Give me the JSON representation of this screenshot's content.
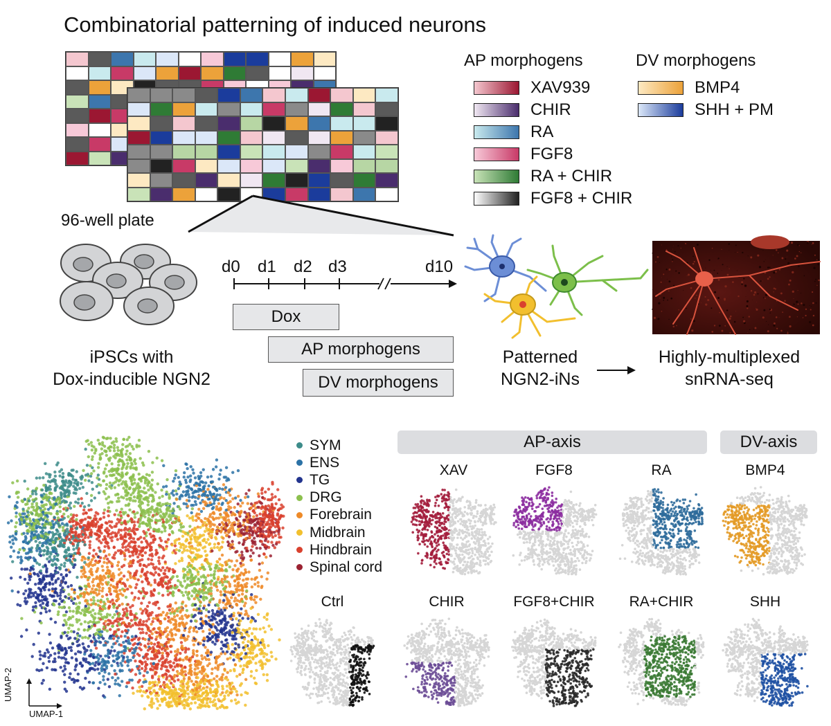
{
  "title": "Combinatorial patterning of induced neurons",
  "plate_label": "96-well plate",
  "legend": {
    "ap_title": "AP morphogens",
    "dv_title": "DV morphogens",
    "ap_items": [
      {
        "label": "XAV939",
        "from": "#f4c7cf",
        "to": "#9b1732"
      },
      {
        "label": "CHIR",
        "from": "#f0e7f2",
        "to": "#4a2d6d"
      },
      {
        "label": "RA",
        "from": "#c9eaee",
        "to": "#3d76ad"
      },
      {
        "label": "FGF8",
        "from": "#f7c9d8",
        "to": "#c83a67"
      },
      {
        "label": "RA + CHIR",
        "from": "#c9e3b8",
        "to": "#2f7b35"
      },
      {
        "label": "FGF8 + CHIR",
        "from": "#ffffff",
        "to": "#222222"
      }
    ],
    "dv_items": [
      {
        "label": "BMP4",
        "from": "#fde9c2",
        "to": "#eca23a"
      },
      {
        "label": "SHH + PM",
        "from": "#dbe7f8",
        "to": "#1b3c9c"
      }
    ]
  },
  "cells_label_1": "iPSCs with",
  "cells_label_2": "Dox-inducible NGN2",
  "timeline": {
    "days": [
      "d0",
      "d1",
      "d2",
      "d3",
      "d10"
    ],
    "dox": "Dox",
    "ap": "AP morphogens",
    "dv": "DV morphogens"
  },
  "neurons_label_1": "Patterned",
  "neurons_label_2": "NGN2-iNs",
  "seq_label_1": "Highly-multiplexed",
  "seq_label_2": "snRNA-seq",
  "clusters": [
    {
      "label": "SYM",
      "color": "#3d8c8a"
    },
    {
      "label": "ENS",
      "color": "#2c72a6"
    },
    {
      "label": "TG",
      "color": "#22348e"
    },
    {
      "label": "DRG",
      "color": "#8cc04e"
    },
    {
      "label": "Forebrain",
      "color": "#ee8a28"
    },
    {
      "label": "Midbrain",
      "color": "#f2c02e"
    },
    {
      "label": "Hindbrain",
      "color": "#d9412e"
    },
    {
      "label": "Spinal cord",
      "color": "#9b2232"
    }
  ],
  "umap_x": "UMAP-1",
  "umap_y": "UMAP-2",
  "ap_axis": "AP-axis",
  "dv_axis": "DV-axis",
  "panels": [
    {
      "label": "XAV",
      "color": "#a31d3c"
    },
    {
      "label": "FGF8",
      "color": "#8c2da0"
    },
    {
      "label": "RA",
      "color": "#2f6c9b"
    },
    {
      "label": "BMP4",
      "color": "#e39a26"
    },
    {
      "label": "Ctrl",
      "color": "#111111"
    },
    {
      "label": "CHIR",
      "color": "#6c4c96"
    },
    {
      "label": "FGF8+CHIR",
      "color": "#2a2a2a"
    },
    {
      "label": "RA+CHIR",
      "color": "#3b7a34"
    },
    {
      "label": "SHH",
      "color": "#1f51a3"
    }
  ]
}
